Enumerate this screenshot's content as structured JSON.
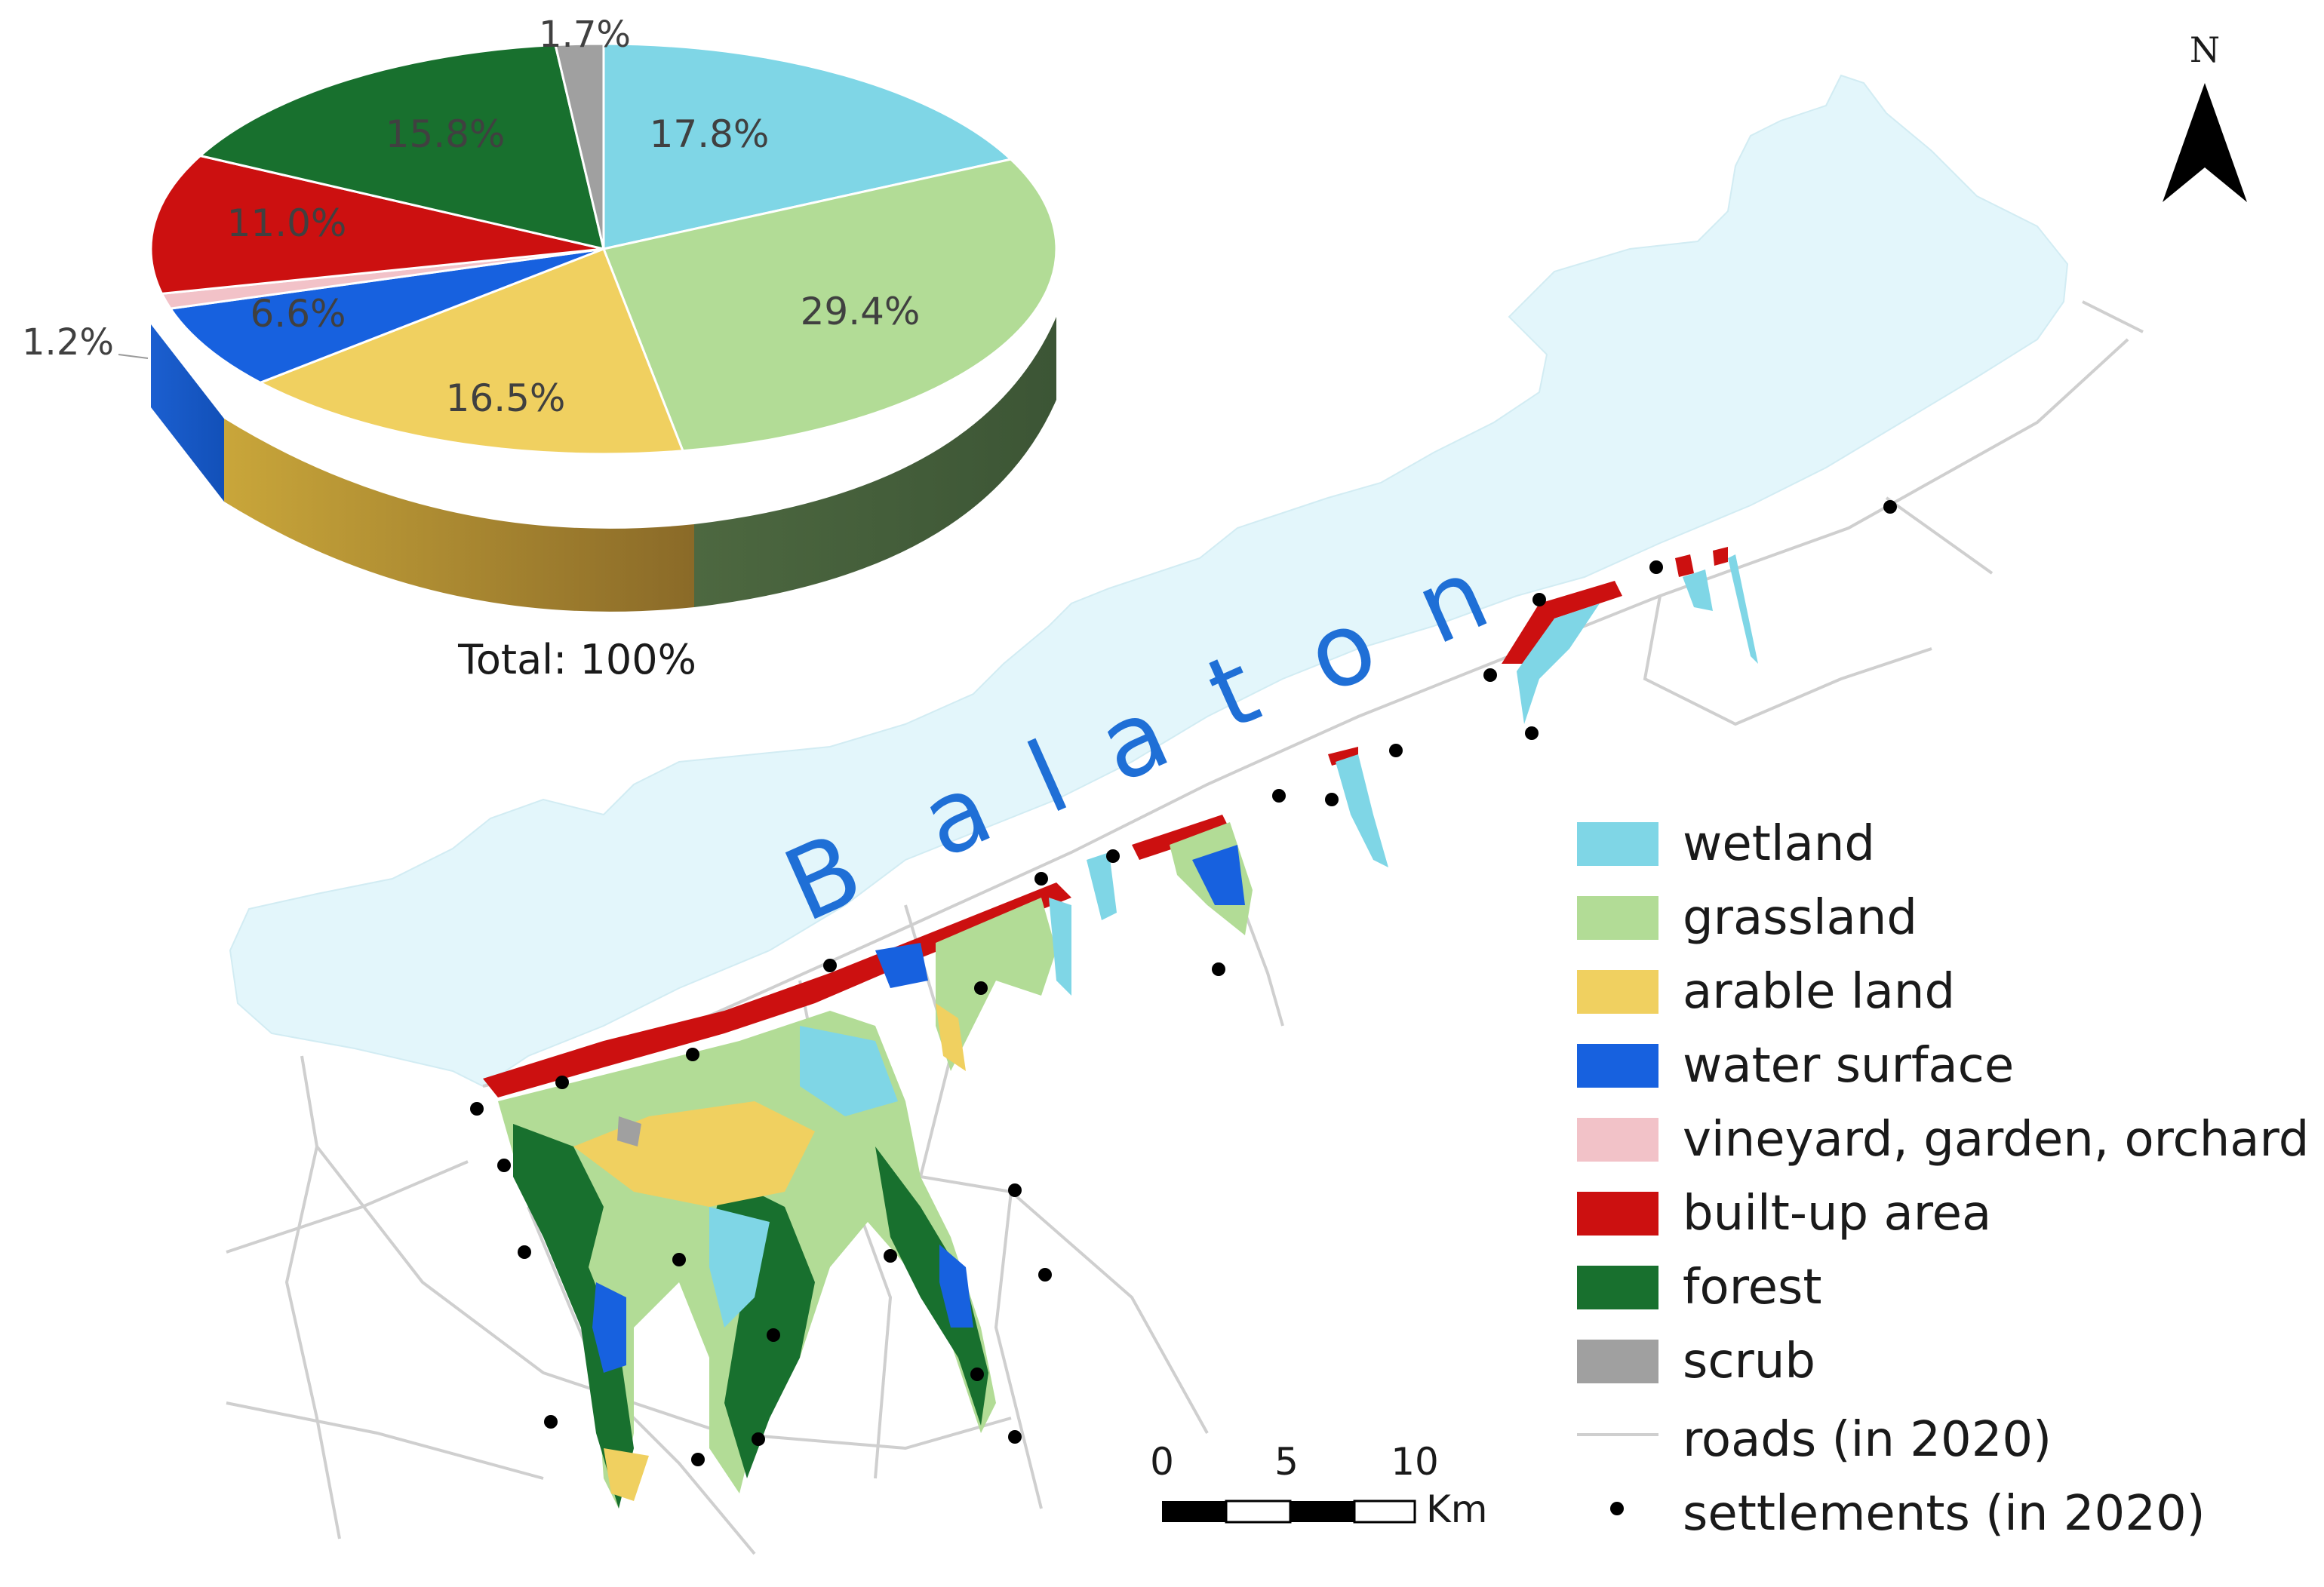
{
  "pie": {
    "total_label": "Total: 100%",
    "slices": [
      {
        "key": "wetland",
        "value": 17.8,
        "label": "17.8%",
        "color": "#7fd6e6"
      },
      {
        "key": "grassland",
        "value": 29.4,
        "label": "29.4%",
        "color": "#b2dc96"
      },
      {
        "key": "arable",
        "value": 16.5,
        "label": "16.5%",
        "color": "#f0d060"
      },
      {
        "key": "water",
        "value": 6.6,
        "label": "6.6%",
        "color": "#1761df"
      },
      {
        "key": "vineyard",
        "value": 1.2,
        "label": "1.2%",
        "color": "#f2c2c8"
      },
      {
        "key": "builtup",
        "value": 11.0,
        "label": "11.0%",
        "color": "#cc1010"
      },
      {
        "key": "forest",
        "value": 15.8,
        "label": "15.8%",
        "color": "#18702e"
      },
      {
        "key": "scrub",
        "value": 1.7,
        "label": "1.7%",
        "color": "#a0a0a0"
      }
    ]
  },
  "map": {
    "lake_name_letters": [
      "B",
      "a",
      "l",
      "a",
      "t",
      "o",
      "n"
    ],
    "north_label": "N",
    "colors": {
      "lake": "#e3f6fb",
      "roads": "#cfcfcf",
      "settlements": "#000000"
    }
  },
  "scale_bar": {
    "ticks": [
      "0",
      "5",
      "10"
    ],
    "unit": "Km"
  },
  "legend": {
    "items": [
      {
        "label": "wetland",
        "color": "#7fd6e6"
      },
      {
        "label": "grassland",
        "color": "#b2dc96"
      },
      {
        "label": "arable land",
        "color": "#f0d060"
      },
      {
        "label": "water surface",
        "color": "#1761df"
      },
      {
        "label": "vineyard, garden, orchard",
        "color": "#f2c2c8"
      },
      {
        "label": "built-up area",
        "color": "#cc1010"
      },
      {
        "label": "forest",
        "color": "#18702e"
      },
      {
        "label": "scrub",
        "color": "#a0a0a0"
      }
    ],
    "roads_label": "roads (in 2020)",
    "settlements_label": "settlements (in 2020)"
  }
}
